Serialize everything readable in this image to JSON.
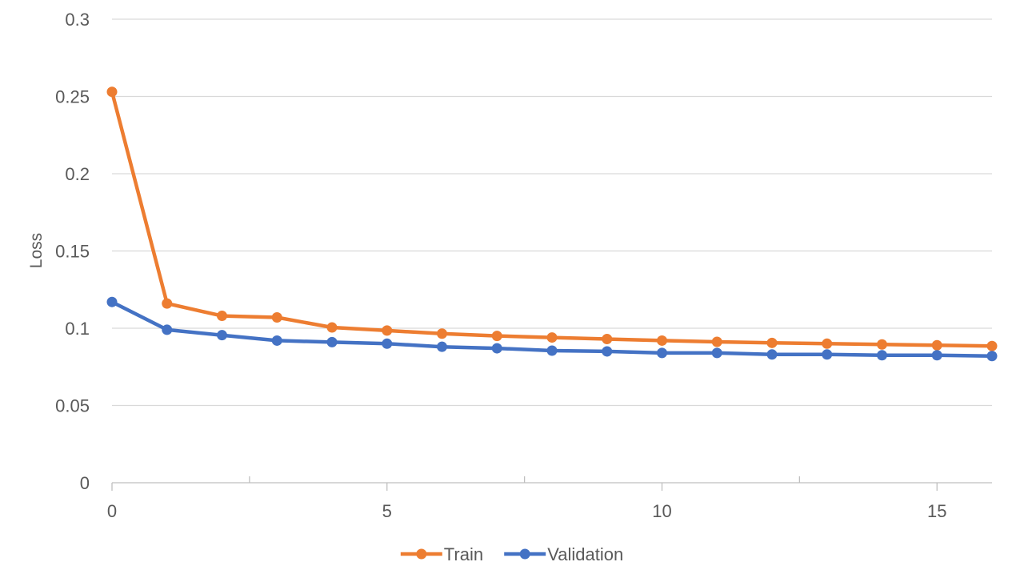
{
  "chart_data": {
    "type": "line",
    "title": "",
    "xlabel": "",
    "ylabel": "Loss",
    "xlim": [
      0,
      16
    ],
    "ylim": [
      0,
      0.3
    ],
    "x_ticks": [
      0,
      5,
      10,
      15
    ],
    "x_tick_labels": [
      "0",
      "5",
      "10",
      "15"
    ],
    "x_minor_ticks": [
      2.5,
      7.5,
      12.5
    ],
    "y_ticks": [
      0,
      0.05,
      0.1,
      0.15,
      0.2,
      0.25,
      0.3
    ],
    "y_tick_labels": [
      "0",
      "0.05",
      "0.1",
      "0.15",
      "0.2",
      "0.25",
      "0.3"
    ],
    "grid": "horizontal",
    "legend": "bottom-center",
    "x": [
      0,
      1,
      2,
      3,
      4,
      5,
      6,
      7,
      8,
      9,
      10,
      11,
      12,
      13,
      14,
      15,
      16
    ],
    "series": [
      {
        "name": "Train",
        "color": "#ED7D31",
        "values": [
          0.253,
          0.116,
          0.108,
          0.107,
          0.1005,
          0.0985,
          0.0965,
          0.095,
          0.094,
          0.093,
          0.092,
          0.0912,
          0.0905,
          0.09,
          0.0895,
          0.089,
          0.0885
        ]
      },
      {
        "name": "Validation",
        "color": "#4472C4",
        "values": [
          0.117,
          0.099,
          0.0955,
          0.092,
          0.091,
          0.09,
          0.088,
          0.087,
          0.0855,
          0.085,
          0.084,
          0.084,
          0.083,
          0.083,
          0.0825,
          0.0825,
          0.082
        ]
      }
    ]
  }
}
